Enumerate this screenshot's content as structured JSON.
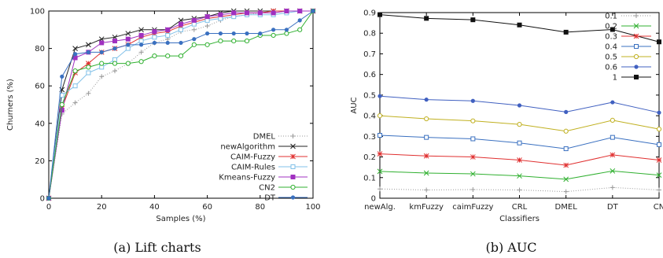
{
  "chart_data": [
    {
      "type": "line",
      "caption": "(a) Lift charts",
      "xlabel": "Samples (%)",
      "ylabel": "Churners (%)",
      "xlim": [
        0,
        100
      ],
      "ylim": [
        0,
        100
      ],
      "xticks": [
        0,
        20,
        40,
        60,
        80,
        100
      ],
      "yticks": [
        0,
        20,
        40,
        60,
        80,
        100
      ],
      "legend_position": "bottom-right",
      "x": [
        0,
        5,
        10,
        15,
        20,
        25,
        30,
        35,
        40,
        45,
        50,
        55,
        60,
        65,
        70,
        75,
        80,
        85,
        90,
        95,
        100
      ],
      "series": [
        {
          "name": "DMEL",
          "color": "#999999",
          "marker": "plus",
          "dash": "1,2",
          "values": [
            0,
            45,
            51,
            56,
            65,
            68,
            72,
            78,
            83,
            85,
            89,
            90,
            92,
            95,
            97,
            98,
            99,
            99,
            100,
            100,
            100
          ]
        },
        {
          "name": "newAlgorithm",
          "color": "#222222",
          "marker": "x",
          "dash": "",
          "values": [
            0,
            58,
            80,
            82,
            85,
            86,
            88,
            90,
            90,
            90,
            95,
            96,
            97,
            99,
            100,
            100,
            100,
            100,
            100,
            100,
            100
          ]
        },
        {
          "name": "CAIM-Fuzzy",
          "color": "#e03030",
          "marker": "star",
          "dash": "",
          "values": [
            0,
            48,
            67,
            72,
            78,
            80,
            82,
            86,
            88,
            89,
            92,
            94,
            96,
            97,
            98,
            99,
            99,
            100,
            100,
            100,
            100
          ]
        },
        {
          "name": "CAIM-Rules",
          "color": "#80c0e8",
          "marker": "square",
          "dash": "",
          "values": [
            0,
            55,
            60,
            67,
            70,
            74,
            80,
            84,
            86,
            87,
            90,
            93,
            95,
            96,
            97,
            98,
            98,
            98,
            99,
            100,
            100
          ]
        },
        {
          "name": "Kmeans-Fuzzy",
          "color": "#a030c0",
          "marker": "fsquare",
          "dash": "",
          "values": [
            0,
            47,
            75,
            78,
            83,
            84,
            85,
            87,
            89,
            90,
            93,
            95,
            97,
            98,
            99,
            99,
            99,
            99,
            100,
            100,
            100
          ]
        },
        {
          "name": "CN2",
          "color": "#30b030",
          "marker": "circle",
          "dash": "",
          "values": [
            0,
            50,
            68,
            70,
            72,
            72,
            72,
            73,
            76,
            76,
            76,
            82,
            82,
            84,
            84,
            84,
            87,
            87,
            88,
            90,
            100
          ]
        },
        {
          "name": "DT",
          "color": "#3a70c0",
          "marker": "fcircle",
          "dash": "",
          "values": [
            0,
            65,
            77,
            78,
            78,
            80,
            82,
            82,
            83,
            83,
            83,
            85,
            88,
            88,
            88,
            88,
            88,
            90,
            90,
            95,
            100
          ]
        }
      ]
    },
    {
      "type": "line",
      "caption": "(b) AUC",
      "xlabel": "Classifiers",
      "ylabel": "AUC",
      "ylim": [
        0,
        0.9
      ],
      "yticks": [
        "0",
        "0.1",
        "0.2",
        "0.3",
        "0.4",
        "0.5",
        "0.6",
        "0.7",
        "0.8",
        "0.9"
      ],
      "categories": [
        "newAlg.",
        "kmFuzzy",
        "caimFuzzy",
        "CRL",
        "DMEL",
        "DT",
        "CN"
      ],
      "legend_position": "top-right",
      "series": [
        {
          "name": "0.1",
          "color": "#999999",
          "marker": "plus",
          "dash": "1,2",
          "values": [
            0.045,
            0.04,
            0.042,
            0.04,
            0.032,
            0.052,
            0.04
          ]
        },
        {
          "name": "0.2",
          "color": "#30b030",
          "marker": "x",
          "dash": "",
          "values": [
            0.13,
            0.122,
            0.118,
            0.108,
            0.092,
            0.132,
            0.112
          ]
        },
        {
          "name": "0.3",
          "color": "#e03030",
          "marker": "star",
          "dash": "",
          "values": [
            0.215,
            0.205,
            0.2,
            0.185,
            0.16,
            0.21,
            0.185
          ]
        },
        {
          "name": "0.4",
          "color": "#3a70c0",
          "marker": "square",
          "dash": "",
          "values": [
            0.305,
            0.295,
            0.288,
            0.268,
            0.24,
            0.295,
            0.26
          ]
        },
        {
          "name": "0.5",
          "color": "#c0b020",
          "marker": "circle",
          "dash": "",
          "values": [
            0.4,
            0.385,
            0.375,
            0.358,
            0.325,
            0.378,
            0.335
          ]
        },
        {
          "name": "0.6",
          "color": "#4060c0",
          "marker": "fcircle",
          "dash": "",
          "values": [
            0.495,
            0.478,
            0.472,
            0.45,
            0.418,
            0.465,
            0.415
          ]
        },
        {
          "name": "1",
          "color": "#111111",
          "marker": "fsquare",
          "dash": "",
          "values": [
            0.89,
            0.872,
            0.865,
            0.84,
            0.805,
            0.818,
            0.758
          ]
        }
      ]
    }
  ]
}
